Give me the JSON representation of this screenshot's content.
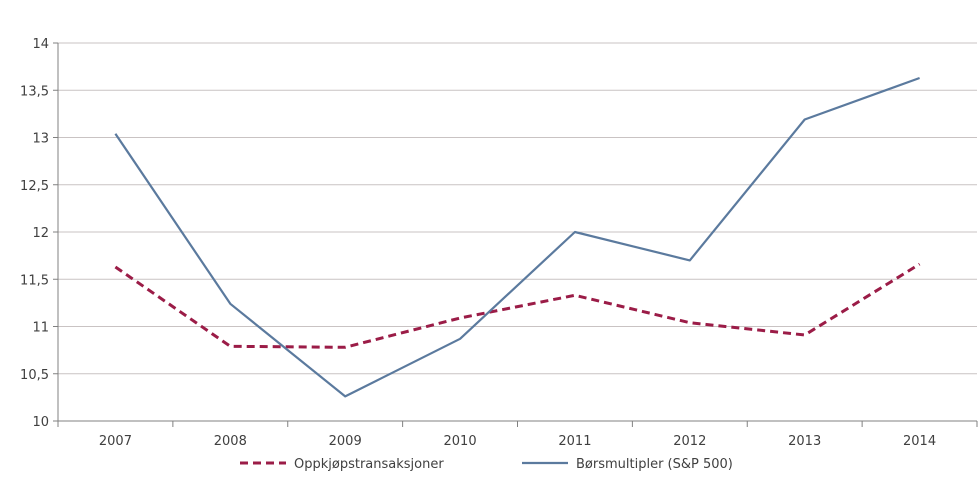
{
  "chart_data": {
    "type": "line",
    "title": "",
    "xlabel": "",
    "ylabel": "",
    "categories": [
      "2007",
      "2008",
      "2009",
      "2010",
      "2011",
      "2012",
      "2013",
      "2014"
    ],
    "ylim": [
      10,
      14
    ],
    "yticks": [
      10,
      10.5,
      11,
      11.5,
      12,
      12.5,
      13,
      13.5,
      14
    ],
    "ytick_labels": [
      "10",
      "10,5",
      "11",
      "11,5",
      "12",
      "12,5",
      "13",
      "13,5",
      "14"
    ],
    "grid": "horizontal",
    "legend_position": "bottom",
    "series": [
      {
        "name": "Oppkjøpstransaksjoner",
        "values": [
          11.63,
          10.79,
          10.78,
          11.09,
          11.33,
          11.04,
          10.91,
          11.66
        ],
        "color": "#9b1c47",
        "style": "dashed"
      },
      {
        "name": "Børsmultipler (S&P 500)",
        "values": [
          13.04,
          11.24,
          10.26,
          10.87,
          12.0,
          11.7,
          13.19,
          13.63
        ],
        "color": "#5b7a9e",
        "style": "solid"
      }
    ],
    "colors": {
      "grid": "#c9c3c3",
      "axis": "#808080",
      "text": "#404040"
    }
  }
}
